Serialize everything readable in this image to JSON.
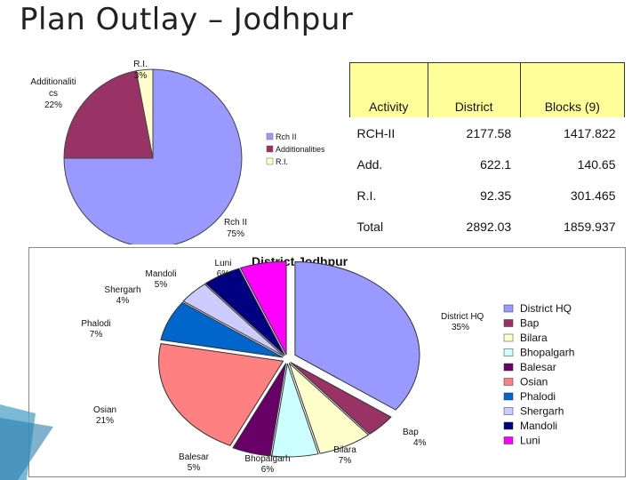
{
  "slide": {
    "title": "Plan Outlay – Jodhpur"
  },
  "table": {
    "headers": [
      "Activity",
      "District",
      "Blocks (9)"
    ],
    "rows": [
      [
        "RCH-II",
        "2177.58",
        "1417.822"
      ],
      [
        "Add.",
        "622.1",
        "140.65"
      ],
      [
        "R.I.",
        "92.35",
        "301.465"
      ],
      [
        "Total",
        "2892.03",
        "1859.937"
      ]
    ]
  },
  "chart_data": [
    {
      "type": "pie",
      "title": "",
      "slices": [
        {
          "label": "Rch II",
          "value": 75,
          "pct_label": "75%",
          "legend": "Rch II",
          "color": "#9999ff"
        },
        {
          "label": "Additionaliti cs",
          "value": 22,
          "pct_label": "22%",
          "legend": "Additionalities",
          "color": "#993366"
        },
        {
          "label": "R.I.",
          "value": 3,
          "pct_label": "3%",
          "legend": "R.I.",
          "color": "#ffffcc"
        }
      ],
      "legend_position": "right"
    },
    {
      "type": "pie",
      "title": "District Jodhpur",
      "slices": [
        {
          "label": "District HQ",
          "value": 35,
          "pct_label": "35%",
          "color": "#9999ff"
        },
        {
          "label": "Bap",
          "value": 4,
          "pct_label": "4%",
          "color": "#993366"
        },
        {
          "label": "Bilara",
          "value": 7,
          "pct_label": "7%",
          "color": "#ffffcc"
        },
        {
          "label": "Bhopalgarh",
          "value": 6,
          "pct_label": "6%",
          "color": "#ccffff"
        },
        {
          "label": "Balesar",
          "value": 5,
          "pct_label": "5%",
          "color": "#660066"
        },
        {
          "label": "Osian",
          "value": 21,
          "pct_label": "21%",
          "color": "#ff8080"
        },
        {
          "label": "Phalodi",
          "value": 7,
          "pct_label": "7%",
          "color": "#0066cc"
        },
        {
          "label": "Shergarh",
          "value": 4,
          "pct_label": "4%",
          "color": "#ccccff"
        },
        {
          "label": "Mandoli",
          "value": 5,
          "pct_label": "5%",
          "color": "#000080"
        },
        {
          "label": "Luni",
          "value": 6,
          "pct_label": "6%",
          "color": "#ff00ff"
        }
      ],
      "legend_position": "right"
    }
  ]
}
